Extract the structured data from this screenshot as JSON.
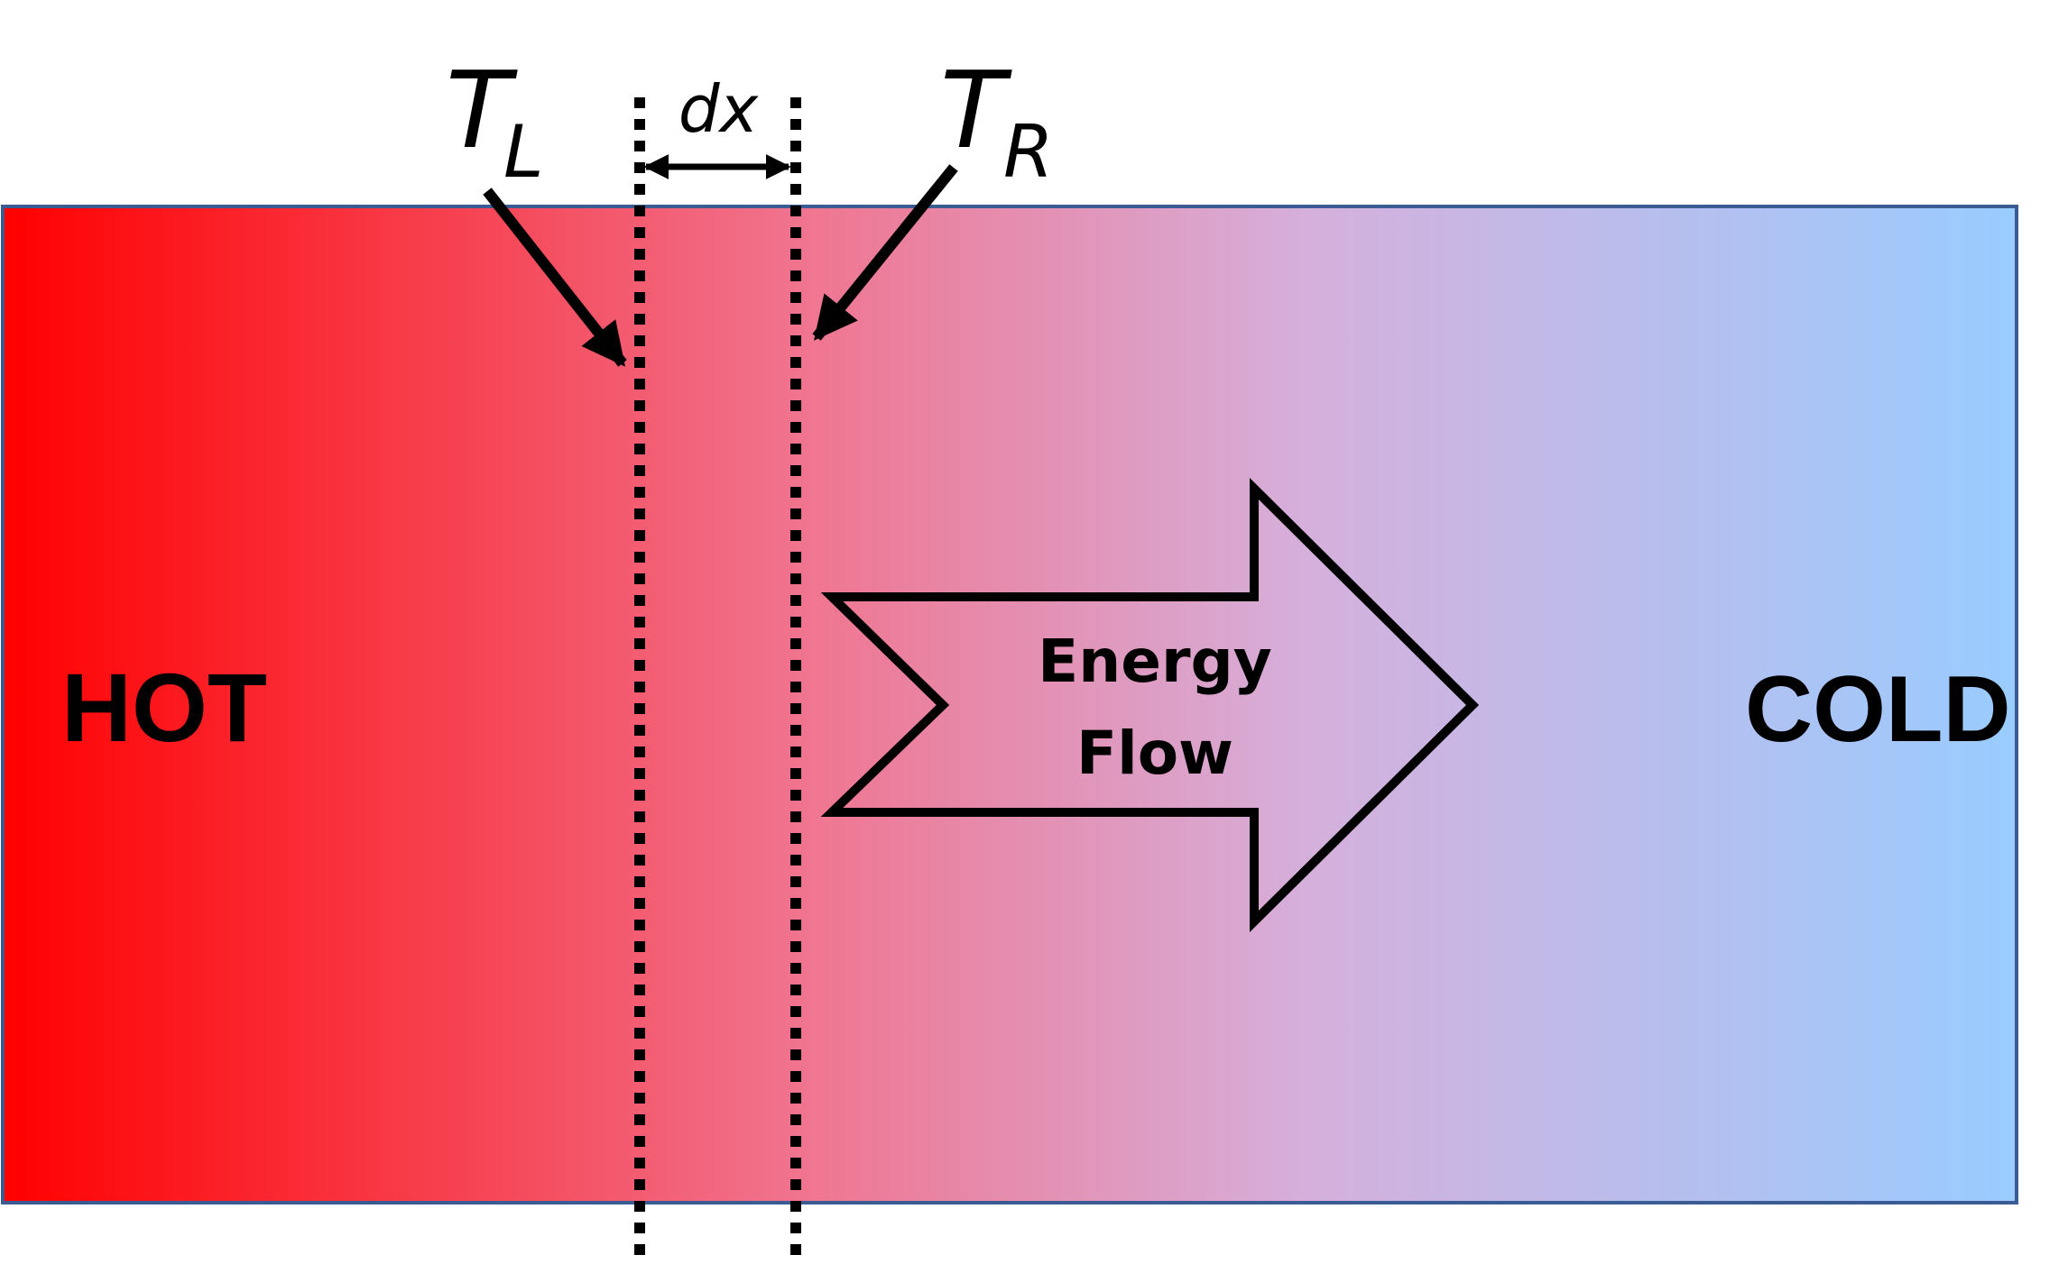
{
  "labels": {
    "hot": "HOT",
    "cold": "COLD",
    "t_left_main": "T",
    "t_left_sub": "L",
    "t_right_main": "T",
    "t_right_sub": "R",
    "dx": "dx",
    "energy_line1": "Energy",
    "energy_line2": "Flow"
  },
  "colors": {
    "hot": "#ff0000",
    "mid": "#f07590",
    "cold": "#99ccff",
    "bar_border": "#3b5b93",
    "ink": "#000000"
  }
}
